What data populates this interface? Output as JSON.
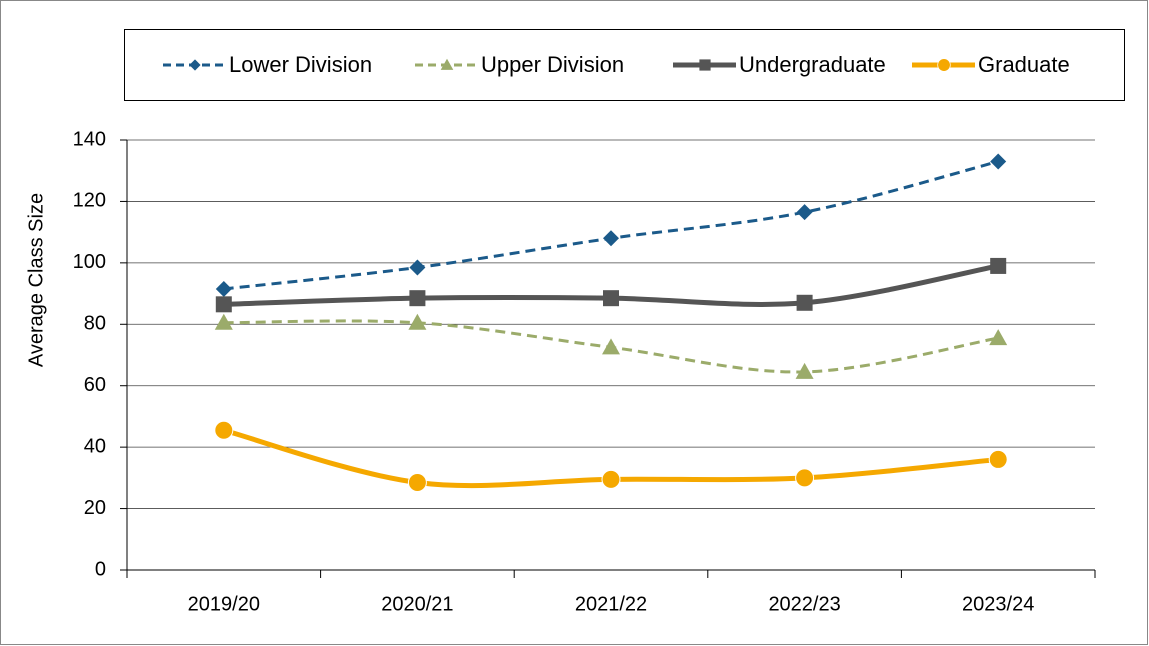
{
  "chart_data": {
    "type": "line",
    "y_label": "Average Class Size",
    "categories": [
      "2019/20",
      "2020/21",
      "2021/22",
      "2022/23",
      "2023/24"
    ],
    "series": [
      {
        "name": "Lower Division",
        "color": "#1b5a8a",
        "marker": "diamond",
        "dashed": true,
        "values": [
          91.5,
          98.5,
          108,
          116.5,
          133
        ]
      },
      {
        "name": "Upper Division",
        "color": "#9bab6a",
        "marker": "triangle",
        "dashed": true,
        "values": [
          80.5,
          80.5,
          72.5,
          64.5,
          75.5
        ]
      },
      {
        "name": "Undergraduate",
        "color": "#555555",
        "marker": "square",
        "dashed": false,
        "values": [
          86.5,
          88.5,
          88.5,
          87,
          99
        ]
      },
      {
        "name": "Graduate",
        "color": "#f5a800",
        "marker": "circle",
        "dashed": false,
        "values": [
          45.5,
          28.5,
          29.5,
          30,
          36
        ]
      }
    ],
    "ylim": [
      0,
      140
    ],
    "yticks": [
      0,
      20,
      40,
      60,
      80,
      100,
      120,
      140
    ],
    "grid": true,
    "legend": "top"
  }
}
